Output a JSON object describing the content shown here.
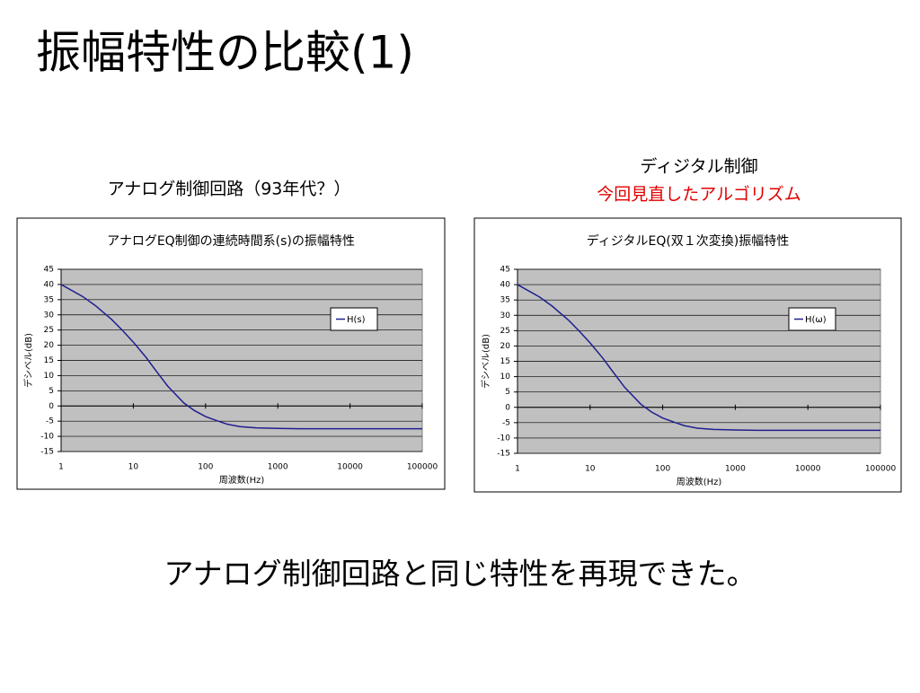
{
  "title": "振幅特性の比較(1)",
  "left_caption": "アナログ制御回路（93年代？）",
  "right_caption": [
    "ディジタル制御",
    "今回見直したアルゴリズム"
  ],
  "conclusion": "アナログ制御回路と同じ特性を再現できた。",
  "chart_data": [
    {
      "type": "line",
      "title": "アナログEQ制御の連続時間系(s)の振幅特性",
      "xlabel": "周波数(Hz)",
      "ylabel": "デシベル(dB)",
      "x": [
        1,
        2,
        3,
        5,
        7,
        10,
        15,
        20,
        30,
        50,
        70,
        100,
        150,
        200,
        300,
        500,
        1000,
        2000,
        5000,
        10000,
        100000
      ],
      "series": [
        {
          "name": "H(s)",
          "color": "#1f1f8f",
          "values": [
            40,
            36,
            33,
            28.5,
            25,
            21,
            16,
            12,
            6.5,
            1,
            -1.5,
            -3.5,
            -5,
            -6,
            -6.8,
            -7.2,
            -7.4,
            -7.5,
            -7.5,
            -7.5,
            -7.5
          ]
        }
      ],
      "xlim": [
        1,
        100000
      ],
      "xticks": [
        1,
        10,
        100,
        1000,
        10000,
        100000
      ],
      "xscale": "log",
      "ylim": [
        -15,
        45
      ],
      "yticks": [
        -15,
        -10,
        -5,
        0,
        5,
        10,
        15,
        20,
        25,
        30,
        35,
        40,
        45
      ],
      "grid": true,
      "legend": "right"
    },
    {
      "type": "line",
      "title": "ディジタルEQ(双１次変換)振幅特性",
      "xlabel": "周波数(Hz)",
      "ylabel": "デシベル(dB)",
      "x": [
        1,
        2,
        3,
        5,
        7,
        10,
        15,
        20,
        30,
        50,
        70,
        100,
        150,
        200,
        300,
        500,
        1000,
        2000,
        5000,
        10000,
        100000
      ],
      "series": [
        {
          "name": "H(ω)",
          "color": "#1f1f8f",
          "values": [
            40,
            36,
            33,
            28.5,
            25,
            21,
            16,
            12,
            6.5,
            1,
            -1.5,
            -3.5,
            -5,
            -6,
            -6.8,
            -7.2,
            -7.4,
            -7.5,
            -7.5,
            -7.5,
            -7.5
          ]
        }
      ],
      "xlim": [
        1,
        100000
      ],
      "xticks": [
        1,
        10,
        100,
        1000,
        10000,
        100000
      ],
      "xscale": "log",
      "ylim": [
        -15,
        45
      ],
      "yticks": [
        -15,
        -10,
        -5,
        0,
        5,
        10,
        15,
        20,
        25,
        30,
        35,
        40,
        45
      ],
      "grid": true,
      "legend": "right"
    }
  ]
}
